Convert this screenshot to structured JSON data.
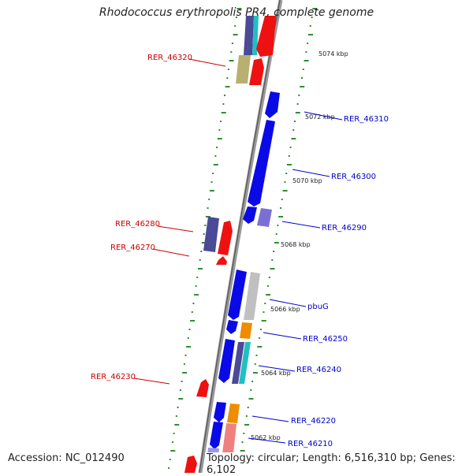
{
  "title": "Rhodococcus erythropolis PR4, complete genome",
  "footer": {
    "accession": "Accession: NC_012490",
    "topology": "Topology: circular; Length: 6,516,310 bp; Genes: 6,102"
  },
  "ticks": [
    "5074 kbp",
    "5072 kbp",
    "5070 kbp",
    "5068 kbp",
    "5066 kbp",
    "5064 kbp",
    "5062 kbp"
  ],
  "gene_labels": {
    "left": [
      "RER_46320",
      "RER_46280",
      "RER_46270",
      "RER_46230"
    ],
    "right": [
      "RER_46310",
      "RER_46300",
      "RER_46290",
      "pbuG",
      "RER_46250",
      "RER_46240",
      "RER_46220",
      "RER_46210"
    ]
  },
  "colors": {
    "backbone": "#888888",
    "tick": "#2f8f2f",
    "left_label": "#cc0000",
    "right_label": "#0000cc",
    "blue": "#0a0ae6",
    "red": "#ee1111",
    "pink": "#f08080",
    "purple": "#4a4a96",
    "lavender": "#7b6fd6",
    "olive": "#b8b070",
    "gray": "#b8b8b8",
    "orange": "#f08c00",
    "cyan": "#20c0c0"
  }
}
